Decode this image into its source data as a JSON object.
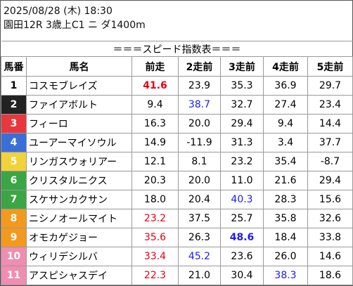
{
  "header": {
    "date": "2025/08/28 (木) 18:30",
    "race": "園田12R 3歳上C1 ニ ダ1400m"
  },
  "table": {
    "title": "＝＝＝スピード指数表＝＝＝",
    "columns": [
      "馬番",
      "馬名",
      "前走",
      "2走前",
      "3走前",
      "4走前",
      "5走前"
    ],
    "rows": [
      {
        "num": "1",
        "frame_bg": "#ffffff",
        "frame_fg": "#000000",
        "name": "コスモブレイズ",
        "values": [
          "41.6",
          "23.9",
          "35.3",
          "36.9",
          "29.7"
        ],
        "highlight": [
          {
            "col": 0,
            "color": "#e60012",
            "bold": true
          }
        ]
      },
      {
        "num": "2",
        "frame_bg": "#222222",
        "frame_fg": "#ffffff",
        "name": "ファイアボルト",
        "values": [
          "9.4",
          "38.7",
          "32.7",
          "27.4",
          "23.4"
        ],
        "highlight": [
          {
            "col": 1,
            "color": "#1a1aff",
            "bold": false
          }
        ]
      },
      {
        "num": "3",
        "frame_bg": "#e8383d",
        "frame_fg": "#ffffff",
        "name": "フィーロ",
        "values": [
          "16.3",
          "20.0",
          "29.4",
          "9.4",
          "14.4"
        ],
        "highlight": []
      },
      {
        "num": "4",
        "frame_bg": "#3b6fd8",
        "frame_fg": "#ffffff",
        "name": "ユーアーマイソウル",
        "values": [
          "14.9",
          "-11.9",
          "31.3",
          "3.4",
          "37.7"
        ],
        "highlight": []
      },
      {
        "num": "5",
        "frame_bg": "#f2d23a",
        "frame_fg": "#ffffff",
        "name": "リンガスウォリアー",
        "values": [
          "12.1",
          "8.1",
          "23.2",
          "35.4",
          "-8.7"
        ],
        "highlight": []
      },
      {
        "num": "6",
        "frame_bg": "#3aa644",
        "frame_fg": "#ffffff",
        "name": "クリスタルニクス",
        "values": [
          "20.3",
          "20.0",
          "11.0",
          "21.6",
          "29.4"
        ],
        "highlight": []
      },
      {
        "num": "7",
        "frame_bg": "#3aa644",
        "frame_fg": "#ffffff",
        "name": "スケサンカクサン",
        "values": [
          "18.0",
          "20.4",
          "40.3",
          "28.3",
          "15.6"
        ],
        "highlight": [
          {
            "col": 2,
            "color": "#1a1aff",
            "bold": false
          }
        ]
      },
      {
        "num": "8",
        "frame_bg": "#f39a1e",
        "frame_fg": "#ffffff",
        "name": "ニシノオールマイト",
        "values": [
          "23.2",
          "37.5",
          "25.7",
          "35.8",
          "32.6"
        ],
        "highlight": [
          {
            "col": 0,
            "color": "#e60012",
            "bold": false
          }
        ]
      },
      {
        "num": "9",
        "frame_bg": "#f39a1e",
        "frame_fg": "#ffffff",
        "name": "オモカゲジョー",
        "values": [
          "35.6",
          "26.3",
          "48.6",
          "18.4",
          "33.8"
        ],
        "highlight": [
          {
            "col": 0,
            "color": "#e60012",
            "bold": false
          },
          {
            "col": 2,
            "color": "#1a1aff",
            "bold": true
          }
        ]
      },
      {
        "num": "10",
        "frame_bg": "#f08db0",
        "frame_fg": "#ffffff",
        "name": "ウィリデシルバ",
        "values": [
          "33.4",
          "45.2",
          "23.6",
          "26.0",
          "14.6"
        ],
        "highlight": [
          {
            "col": 0,
            "color": "#e60012",
            "bold": false
          },
          {
            "col": 1,
            "color": "#1a1aff",
            "bold": false
          }
        ]
      },
      {
        "num": "11",
        "frame_bg": "#f08db0",
        "frame_fg": "#ffffff",
        "name": "アスピシャスデイ",
        "values": [
          "22.3",
          "21.0",
          "30.4",
          "38.3",
          "18.6"
        ],
        "highlight": [
          {
            "col": 0,
            "color": "#e60012",
            "bold": false
          },
          {
            "col": 3,
            "color": "#1a1aff",
            "bold": false
          }
        ]
      }
    ]
  }
}
